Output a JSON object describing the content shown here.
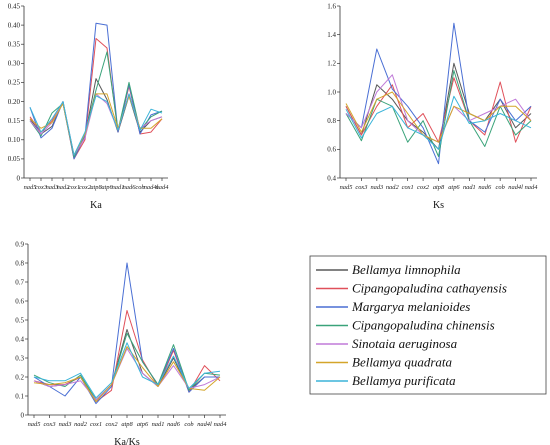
{
  "chart_data": [
    {
      "type": "line",
      "xlabel": "Ka",
      "ylabel": "",
      "ylim": [
        0,
        0.45
      ],
      "yticks": [
        "0",
        "0.05",
        "0.10",
        "0.15",
        "0.20",
        "0.25",
        "0.30",
        "0.35",
        "0.40",
        "0.45"
      ],
      "categories": [
        "nad5",
        "cox3",
        "nad3",
        "nad2",
        "cox1",
        "cox2",
        "atp8",
        "atp6",
        "nad1",
        "nad6",
        "cob",
        "nad4l",
        "nad4"
      ],
      "series": [
        {
          "name": "Bellamya limnophila",
          "values": [
            0.155,
            0.115,
            0.135,
            0.2,
            0.055,
            0.11,
            0.26,
            0.205,
            0.12,
            0.215,
            0.12,
            0.15,
            0.16
          ]
        },
        {
          "name": "Cipangopaludina cathayensis",
          "values": [
            0.16,
            0.12,
            0.15,
            0.195,
            0.05,
            0.1,
            0.365,
            0.34,
            0.12,
            0.24,
            0.115,
            0.12,
            0.155
          ]
        },
        {
          "name": "Margarya melanioides",
          "values": [
            0.185,
            0.105,
            0.13,
            0.2,
            0.05,
            0.11,
            0.405,
            0.4,
            0.12,
            0.245,
            0.115,
            0.165,
            0.175
          ]
        },
        {
          "name": "Cipangopaludina chinensis",
          "values": [
            0.15,
            0.11,
            0.17,
            0.195,
            0.055,
            0.115,
            0.23,
            0.33,
            0.125,
            0.25,
            0.125,
            0.16,
            0.175
          ]
        },
        {
          "name": "Sinotaia aeruginosa",
          "values": [
            0.15,
            0.115,
            0.145,
            0.2,
            0.06,
            0.105,
            0.22,
            0.195,
            0.125,
            0.22,
            0.13,
            0.15,
            0.16
          ]
        },
        {
          "name": "Bellamya quadrata",
          "values": [
            0.155,
            0.13,
            0.145,
            0.195,
            0.06,
            0.115,
            0.22,
            0.22,
            0.13,
            0.215,
            0.13,
            0.13,
            0.155
          ]
        },
        {
          "name": "Bellamya purificata",
          "values": [
            0.185,
            0.12,
            0.155,
            0.2,
            0.06,
            0.12,
            0.215,
            0.2,
            0.125,
            0.22,
            0.125,
            0.18,
            0.17
          ]
        }
      ]
    },
    {
      "type": "line",
      "xlabel": "Ks",
      "ylabel": "",
      "ylim": [
        0.4,
        1.6
      ],
      "yticks": [
        "0.4",
        "0.6",
        "0.8",
        "1.0",
        "1.2",
        "1.4",
        "1.6"
      ],
      "categories": [
        "nad5",
        "cox3",
        "nad3",
        "nad2",
        "cox1",
        "cox2",
        "atp8",
        "atp6",
        "nad1",
        "nad6",
        "cob",
        "nad4l",
        "nad4"
      ],
      "series": [
        {
          "name": "Bellamya limnophila",
          "values": [
            0.9,
            0.7,
            1.05,
            0.95,
            0.8,
            0.72,
            0.6,
            1.2,
            0.85,
            0.8,
            0.95,
            0.75,
            0.85
          ]
        },
        {
          "name": "Cipangopaludina cathayensis",
          "values": [
            0.9,
            0.7,
            0.9,
            1.05,
            0.75,
            0.85,
            0.65,
            1.1,
            0.8,
            0.7,
            1.07,
            0.65,
            0.9
          ]
        },
        {
          "name": "Margarya melanioides",
          "values": [
            0.85,
            0.75,
            1.3,
            1.02,
            0.9,
            0.75,
            0.5,
            1.48,
            0.8,
            0.72,
            0.95,
            0.8,
            0.9
          ]
        },
        {
          "name": "Cipangopaludina chinensis",
          "values": [
            0.85,
            0.66,
            0.95,
            0.9,
            0.65,
            0.8,
            0.55,
            1.15,
            0.8,
            0.62,
            0.9,
            0.7,
            0.8
          ]
        },
        {
          "name": "Sinotaia aeruginosa",
          "values": [
            0.85,
            0.75,
            1.0,
            1.12,
            0.8,
            0.7,
            0.65,
            0.9,
            0.8,
            0.85,
            0.9,
            0.95,
            0.8
          ]
        },
        {
          "name": "Bellamya quadrata",
          "values": [
            0.92,
            0.72,
            0.95,
            1.0,
            0.85,
            0.7,
            0.65,
            0.9,
            0.85,
            0.8,
            0.9,
            0.9,
            0.8
          ]
        },
        {
          "name": "Bellamya purificata",
          "values": [
            0.88,
            0.68,
            0.85,
            0.9,
            0.75,
            0.7,
            0.6,
            0.97,
            0.78,
            0.8,
            0.85,
            0.8,
            0.75
          ]
        }
      ]
    },
    {
      "type": "line",
      "xlabel": "Ka/Ks",
      "ylabel": "",
      "ylim": [
        0,
        0.9
      ],
      "yticks": [
        "0",
        "0.1",
        "0.2",
        "0.3",
        "0.4",
        "0.5",
        "0.6",
        "0.7",
        "0.8",
        "0.9"
      ],
      "categories": [
        "nad5",
        "cox3",
        "nad3",
        "nad2",
        "cox1",
        "cox2",
        "atp8",
        "atp6",
        "nad1",
        "nad6",
        "cob",
        "nad4l",
        "nad4"
      ],
      "series": [
        {
          "name": "Bellamya limnophila",
          "values": [
            0.18,
            0.15,
            0.16,
            0.2,
            0.08,
            0.16,
            0.45,
            0.22,
            0.15,
            0.3,
            0.13,
            0.2,
            0.2
          ]
        },
        {
          "name": "Cipangopaludina cathayensis",
          "values": [
            0.18,
            0.16,
            0.16,
            0.2,
            0.07,
            0.13,
            0.55,
            0.29,
            0.15,
            0.34,
            0.12,
            0.26,
            0.18
          ]
        },
        {
          "name": "Margarya melanioides",
          "values": [
            0.2,
            0.15,
            0.1,
            0.2,
            0.06,
            0.15,
            0.8,
            0.28,
            0.16,
            0.35,
            0.12,
            0.2,
            0.2
          ]
        },
        {
          "name": "Cipangopaludina chinensis",
          "values": [
            0.21,
            0.17,
            0.15,
            0.21,
            0.08,
            0.16,
            0.43,
            0.28,
            0.16,
            0.37,
            0.13,
            0.22,
            0.21
          ]
        },
        {
          "name": "Sinotaia aeruginosa",
          "values": [
            0.18,
            0.15,
            0.16,
            0.18,
            0.08,
            0.16,
            0.35,
            0.22,
            0.15,
            0.26,
            0.14,
            0.16,
            0.2
          ]
        },
        {
          "name": "Bellamya quadrata",
          "values": [
            0.17,
            0.16,
            0.17,
            0.2,
            0.07,
            0.16,
            0.36,
            0.25,
            0.15,
            0.28,
            0.14,
            0.13,
            0.2
          ]
        },
        {
          "name": "Bellamya purificata",
          "values": [
            0.2,
            0.18,
            0.18,
            0.22,
            0.09,
            0.17,
            0.38,
            0.2,
            0.16,
            0.31,
            0.14,
            0.22,
            0.23
          ]
        }
      ]
    }
  ],
  "colors": [
    "#595959",
    "#e0505a",
    "#4a6fd4",
    "#3aa37a",
    "#c07ad8",
    "#d4a52a",
    "#3bb4d9"
  ],
  "legend": [
    "Bellamya limnophila",
    "Cipangopaludina cathayensis",
    "Margarya melanioides",
    "Cipangopaludina chinensis",
    "Sinotaia aeruginosa",
    "Bellamya quadrata",
    "Bellamya purificata"
  ]
}
